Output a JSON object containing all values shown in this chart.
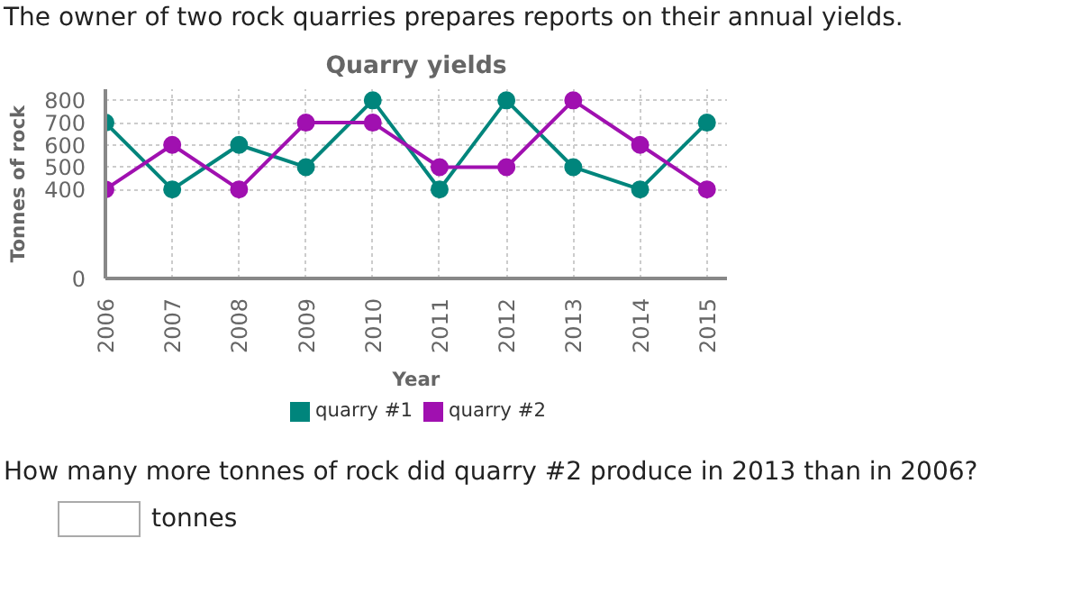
{
  "chart_data": {
    "type": "line",
    "title": "Quarry yields",
    "xlabel": "Year",
    "ylabel": "Tonnes of rock",
    "categories": [
      "2006",
      "2007",
      "2008",
      "2009",
      "2010",
      "2011",
      "2012",
      "2013",
      "2014",
      "2015"
    ],
    "series": [
      {
        "name": "quarry #1",
        "color": "#00857c",
        "values": [
          700,
          400,
          600,
          500,
          800,
          400,
          800,
          500,
          400,
          700
        ]
      },
      {
        "name": "quarry #2",
        "color": "#a010b0",
        "values": [
          400,
          600,
          400,
          700,
          700,
          500,
          500,
          800,
          600,
          400
        ]
      }
    ],
    "ylim": [
      0,
      850
    ],
    "yticks": [
      0,
      400,
      500,
      600,
      700,
      800
    ],
    "grid": true,
    "legend": "bottom",
    "marker": "circle",
    "line_style": "solid",
    "annotations": [
      "The owner of two rock quarries prepares reports on their annual yields.",
      "How many more tonnes of rock did quarry #2 produce in 2013 than in 2006?",
      "tonnes"
    ]
  }
}
